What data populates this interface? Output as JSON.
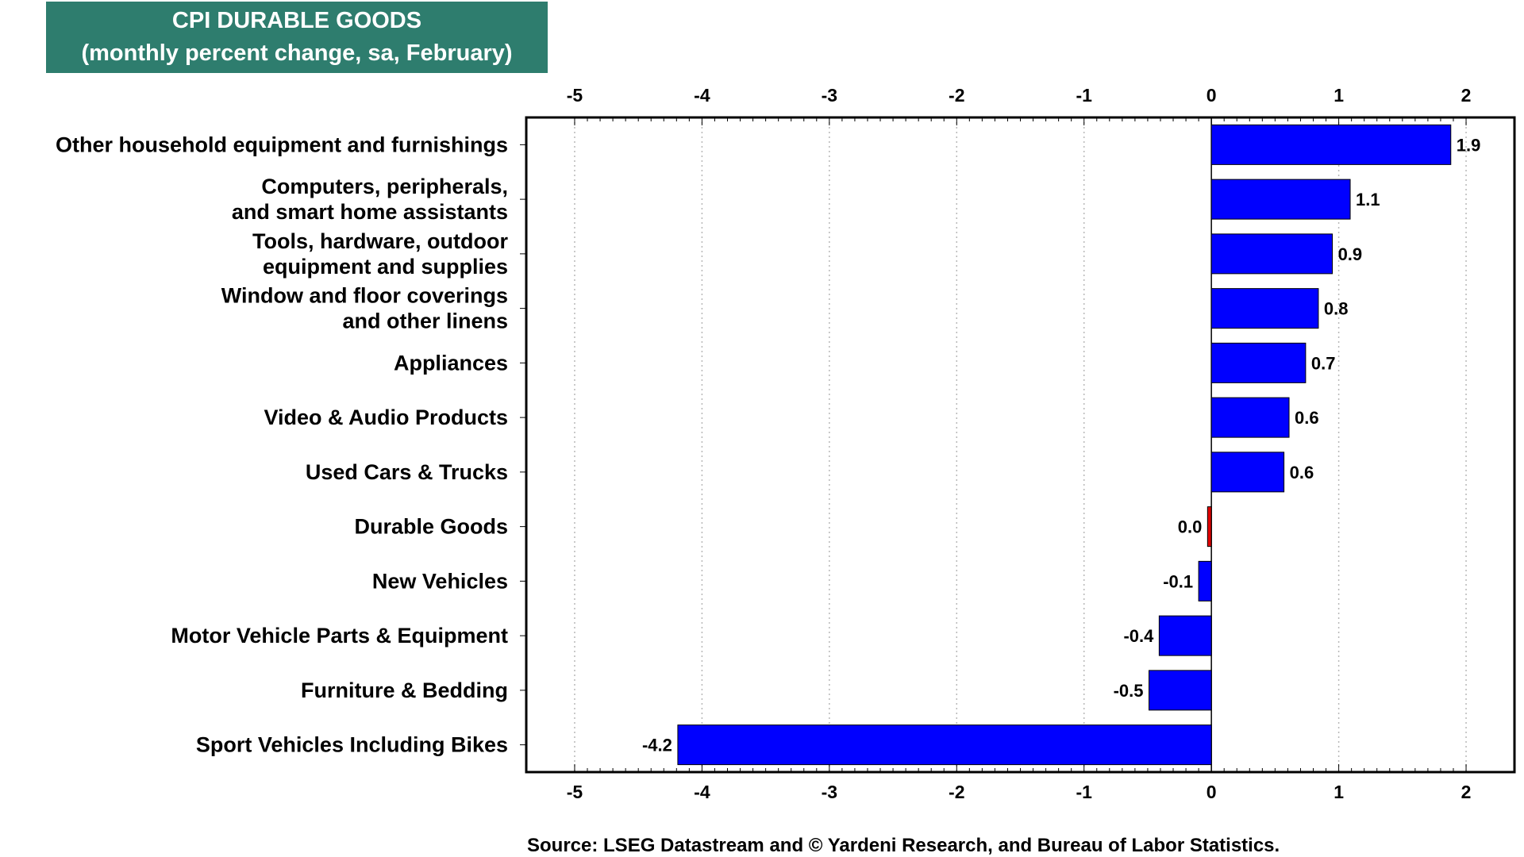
{
  "chart_data": {
    "type": "bar",
    "orientation": "horizontal",
    "title": "CPI DURABLE GOODS",
    "subtitle": "(monthly percent change, sa, February)",
    "categories": [
      [
        "Other household equipment and furnishings"
      ],
      [
        "Computers, peripherals,",
        "and smart home assistants"
      ],
      [
        "Tools, hardware, outdoor",
        "equipment and supplies"
      ],
      [
        "Window and floor coverings",
        "and other linens"
      ],
      [
        "Appliances"
      ],
      [
        "Video & Audio Products"
      ],
      [
        "Used Cars & Trucks"
      ],
      [
        "Durable Goods"
      ],
      [
        "New Vehicles"
      ],
      [
        "Motor Vehicle Parts & Equipment"
      ],
      [
        "Furniture & Bedding"
      ],
      [
        "Sport Vehicles Including Bikes"
      ]
    ],
    "values": [
      1.88,
      1.09,
      0.95,
      0.84,
      0.74,
      0.61,
      0.57,
      -0.03,
      -0.1,
      -0.41,
      -0.49,
      -4.19
    ],
    "data_labels": [
      "1.9",
      "1.1",
      "0.9",
      "0.8",
      "0.7",
      "0.6",
      "0.6",
      "0.0",
      "-0.1",
      "-0.4",
      "-0.5",
      "-4.2"
    ],
    "bar_colors": [
      "#0000ff",
      "#0000ff",
      "#0000ff",
      "#0000ff",
      "#0000ff",
      "#0000ff",
      "#0000ff",
      "#e00000",
      "#0000ff",
      "#0000ff",
      "#0000ff",
      "#0000ff"
    ],
    "xlim": [
      -5.38,
      2.38
    ],
    "xticks": [
      -5,
      -4,
      -3,
      -2,
      -1,
      0,
      1,
      2
    ],
    "xtick_labels": [
      "-5",
      "-4",
      "-3",
      "-2",
      "-1",
      "0",
      "1",
      "2"
    ],
    "xlabel": "",
    "ylabel": "",
    "grid": "vertical dotted",
    "legend": "none"
  },
  "source": "Source: LSEG Datastream and © Yardeni Research, and Bureau of Labor Statistics.",
  "colors": {
    "title_bg": "#2e7d6e",
    "bar": "#0000ff",
    "highlight_bar": "#e00000"
  }
}
